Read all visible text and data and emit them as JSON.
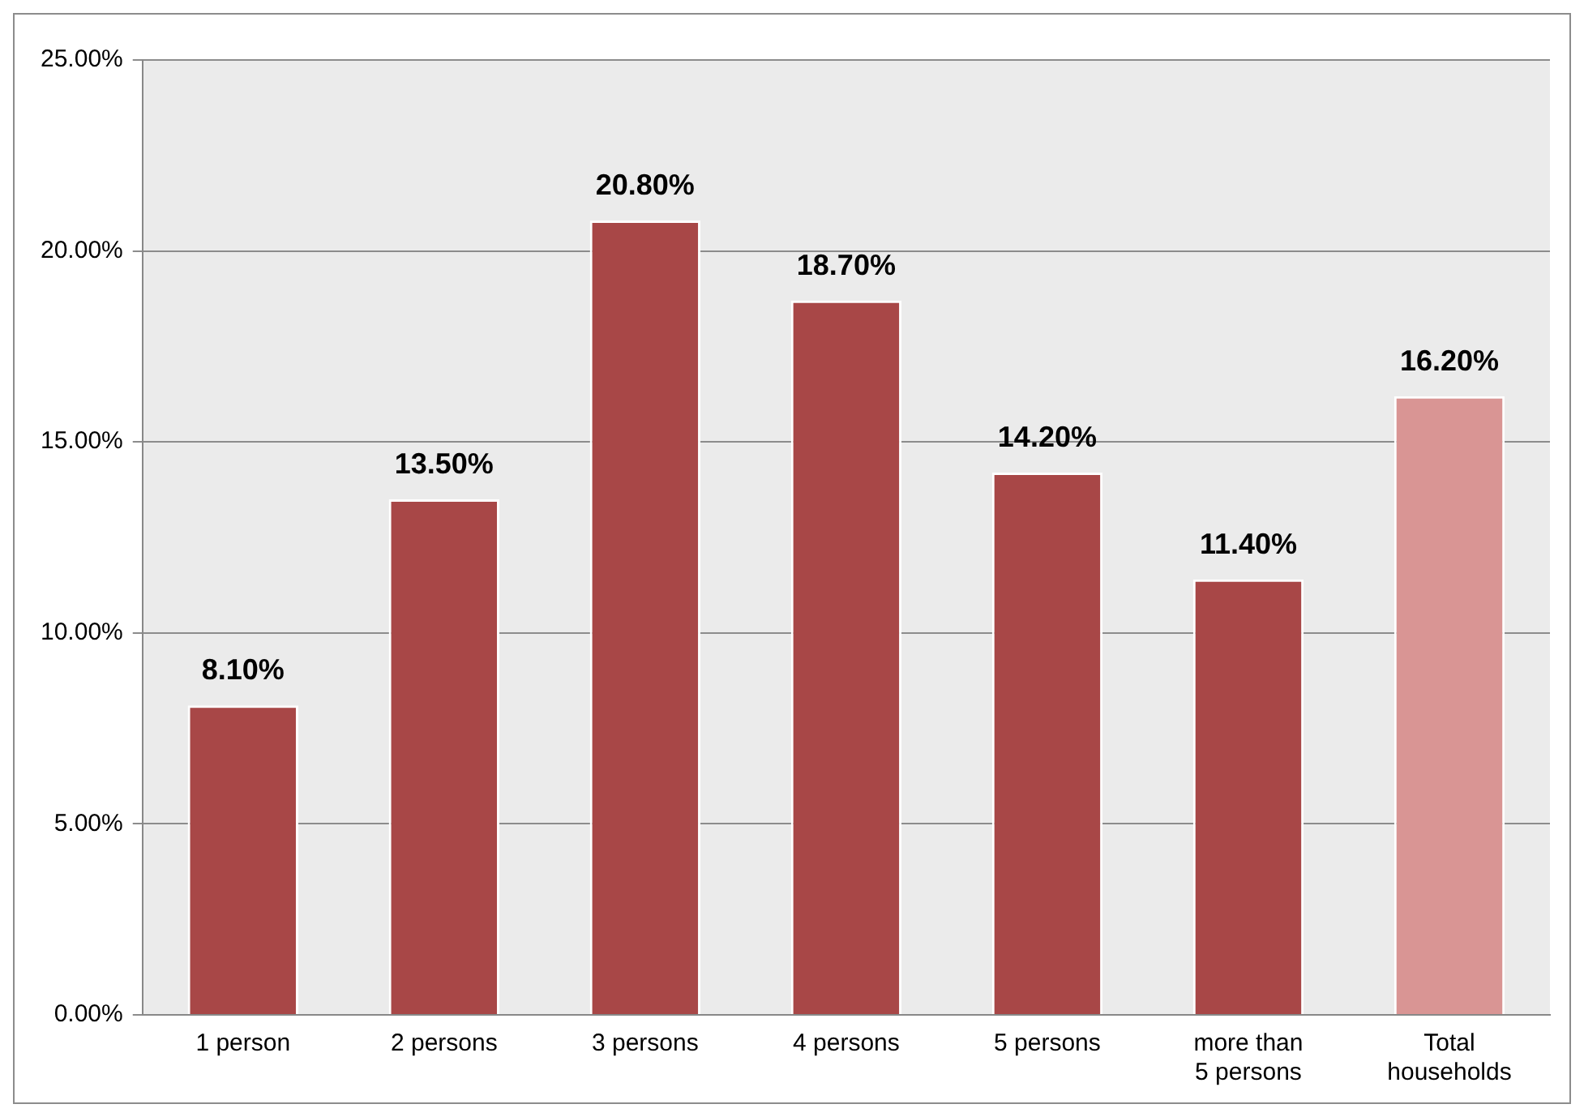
{
  "chart_data": {
    "type": "bar",
    "categories": [
      "1 person",
      "2 persons",
      "3 persons",
      "4 persons",
      "5 persons",
      "more than 5 persons",
      "Total households"
    ],
    "values": [
      8.1,
      13.5,
      20.8,
      18.7,
      14.2,
      11.4,
      16.2
    ],
    "colors": [
      "#a84747",
      "#a84747",
      "#a84747",
      "#a84747",
      "#a84747",
      "#a84747",
      "#d99594"
    ],
    "value_labels": [
      "8.10%",
      "13.50%",
      "20.80%",
      "18.70%",
      "14.20%",
      "11.40%",
      "16.20%"
    ],
    "ylim": [
      0,
      25
    ],
    "yticks": [
      {
        "value": 0,
        "label": "0.00%"
      },
      {
        "value": 5,
        "label": "5.00%"
      },
      {
        "value": 10,
        "label": "10.00%"
      },
      {
        "value": 15,
        "label": "15.00%"
      },
      {
        "value": 20,
        "label": "20.00%"
      },
      {
        "value": 25,
        "label": "25.00%"
      }
    ],
    "grid": "y",
    "legend": false
  }
}
